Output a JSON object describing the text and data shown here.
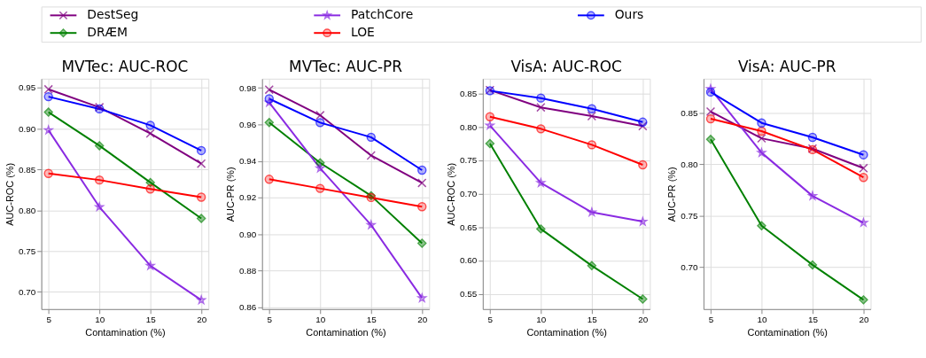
{
  "chart_data": [
    {
      "type": "line",
      "title": "MVTec: AUC-ROC",
      "xlabel": "Contamination (%)",
      "ylabel": "AUC-ROC (%)",
      "x": [
        5,
        10,
        15,
        20
      ],
      "xlim": [
        4.3,
        20.7
      ],
      "xticks": [
        5,
        10,
        15,
        20
      ],
      "ylim": [
        0.679,
        0.961
      ],
      "yticks": [
        {
          "value": 0.7,
          "label": "0.70"
        },
        {
          "value": 0.75,
          "label": "0.75"
        },
        {
          "value": 0.8,
          "label": "0.80"
        },
        {
          "value": 0.85,
          "label": "0.85"
        },
        {
          "value": 0.9,
          "label": "0.90"
        },
        {
          "value": 0.95,
          "label": "0.95"
        }
      ],
      "grid": true,
      "legend": "top",
      "series": [
        {
          "name": "DestSeg",
          "color": "#800080",
          "marker": "cross",
          "values": [
            0.948,
            0.926,
            0.894,
            0.857
          ]
        },
        {
          "name": "DRÆM",
          "color": "#008000",
          "marker": "diamond",
          "values": [
            0.92,
            0.879,
            0.834,
            0.79
          ]
        },
        {
          "name": "PatchCore",
          "color": "#8a2be2",
          "marker": "star",
          "values": [
            0.898,
            0.804,
            0.732,
            0.69
          ]
        },
        {
          "name": "LOE",
          "color": "#ff0000",
          "marker": "circle",
          "values": [
            0.845,
            0.837,
            0.826,
            0.816
          ]
        },
        {
          "name": "Ours",
          "color": "#0000ff",
          "marker": "circle",
          "values": [
            0.939,
            0.924,
            0.904,
            0.873
          ]
        }
      ]
    },
    {
      "type": "line",
      "title": "MVTec: AUC-PR",
      "xlabel": "Contamination (%)",
      "ylabel": "AUC-PR (%)",
      "x": [
        5,
        10,
        15,
        20
      ],
      "xlim": [
        4.3,
        20.7
      ],
      "xticks": [
        5,
        10,
        15,
        20
      ],
      "ylim": [
        0.859,
        0.985
      ],
      "yticks": [
        {
          "value": 0.86,
          "label": "0.86"
        },
        {
          "value": 0.88,
          "label": "0.88"
        },
        {
          "value": 0.9,
          "label": "0.90"
        },
        {
          "value": 0.92,
          "label": "0.92"
        },
        {
          "value": 0.94,
          "label": "0.94"
        },
        {
          "value": 0.96,
          "label": "0.96"
        },
        {
          "value": 0.98,
          "label": "0.98"
        }
      ],
      "grid": true,
      "series": [
        {
          "color": "#800080",
          "marker": "cross",
          "values": [
            0.979,
            0.965,
            0.943,
            0.928
          ]
        },
        {
          "color": "#008000",
          "marker": "diamond",
          "values": [
            0.961,
            0.939,
            0.921,
            0.895
          ]
        },
        {
          "color": "#8a2be2",
          "marker": "star",
          "values": [
            0.972,
            0.936,
            0.905,
            0.865
          ]
        },
        {
          "color": "#ff0000",
          "marker": "circle",
          "values": [
            0.93,
            0.925,
            0.92,
            0.915
          ]
        },
        {
          "color": "#0000ff",
          "marker": "circle",
          "values": [
            0.974,
            0.961,
            0.953,
            0.935
          ]
        }
      ]
    },
    {
      "type": "line",
      "title": "VisA: AUC-ROC",
      "xlabel": "Contamination (%)",
      "ylabel": "AUC-ROC (%)",
      "x": [
        5,
        10,
        15,
        20
      ],
      "xlim": [
        4.3,
        20.7
      ],
      "xticks": [
        5,
        10,
        15,
        20
      ],
      "ylim": [
        0.527,
        0.872
      ],
      "yticks": [
        {
          "value": 0.55,
          "label": "0.55"
        },
        {
          "value": 0.6,
          "label": "0.60"
        },
        {
          "value": 0.65,
          "label": "0.65"
        },
        {
          "value": 0.7,
          "label": "0.70"
        },
        {
          "value": 0.75,
          "label": "0.75"
        },
        {
          "value": 0.8,
          "label": "0.80"
        },
        {
          "value": 0.85,
          "label": "0.85"
        }
      ],
      "grid": true,
      "series": [
        {
          "color": "#800080",
          "marker": "cross",
          "values": [
            0.855,
            0.829,
            0.816,
            0.801
          ]
        },
        {
          "color": "#008000",
          "marker": "diamond",
          "values": [
            0.775,
            0.647,
            0.592,
            0.542
          ]
        },
        {
          "color": "#8a2be2",
          "marker": "star",
          "values": [
            0.802,
            0.716,
            0.672,
            0.658
          ]
        },
        {
          "color": "#ff0000",
          "marker": "circle",
          "values": [
            0.815,
            0.797,
            0.773,
            0.743
          ]
        },
        {
          "color": "#0000ff",
          "marker": "circle",
          "values": [
            0.854,
            0.843,
            0.827,
            0.807
          ]
        }
      ]
    },
    {
      "type": "line",
      "title": "VisA: AUC-PR",
      "xlabel": "Contamination (%)",
      "ylabel": "AUC-PR (%)",
      "x": [
        5,
        10,
        15,
        20
      ],
      "xlim": [
        4.3,
        20.7
      ],
      "xticks": [
        5,
        10,
        15,
        20
      ],
      "ylim": [
        0.659,
        0.883
      ],
      "yticks": [
        {
          "value": 0.7,
          "label": "0.70"
        },
        {
          "value": 0.75,
          "label": "0.75"
        },
        {
          "value": 0.8,
          "label": "0.80"
        },
        {
          "value": 0.85,
          "label": "0.85"
        }
      ],
      "grid": true,
      "series": [
        {
          "color": "#800080",
          "marker": "cross",
          "values": [
            0.851,
            0.825,
            0.815,
            0.796
          ]
        },
        {
          "color": "#008000",
          "marker": "diamond",
          "values": [
            0.824,
            0.74,
            0.702,
            0.668
          ]
        },
        {
          "color": "#8a2be2",
          "marker": "star",
          "values": [
            0.873,
            0.811,
            0.769,
            0.743
          ]
        },
        {
          "color": "#ff0000",
          "marker": "circle",
          "values": [
            0.844,
            0.832,
            0.814,
            0.787
          ]
        },
        {
          "color": "#0000ff",
          "marker": "circle",
          "values": [
            0.87,
            0.84,
            0.826,
            0.809
          ]
        }
      ]
    }
  ]
}
